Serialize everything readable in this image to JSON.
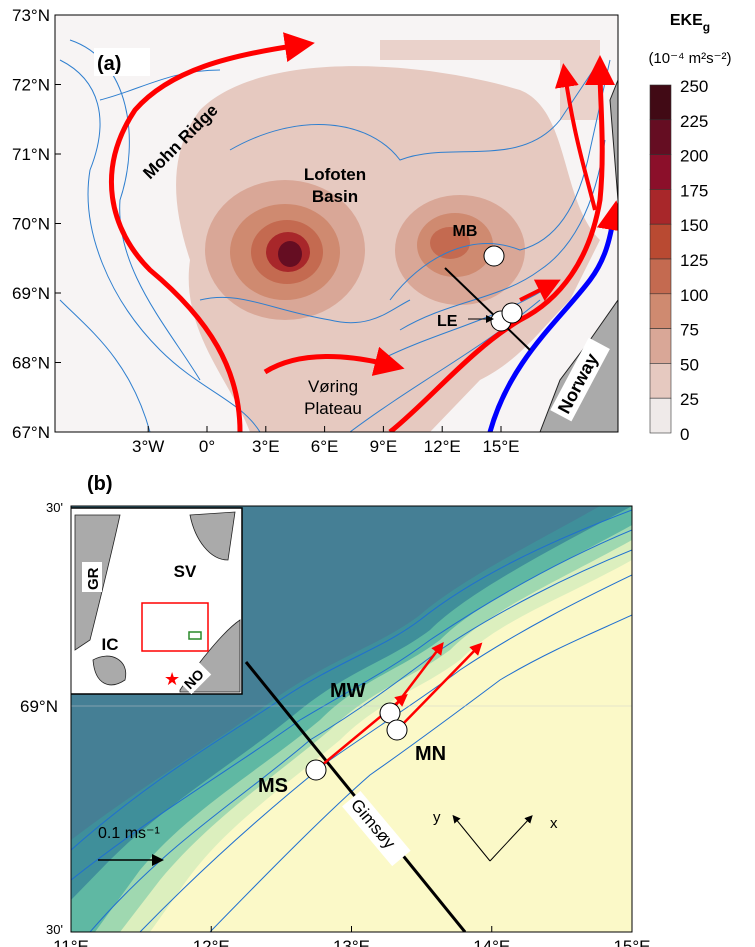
{
  "panel_a": {
    "label": "(a)",
    "lon_ticks": [
      "3",
      "W",
      "0",
      "",
      "3",
      "E",
      "6",
      "E",
      "9",
      "E",
      "12",
      "E",
      "15",
      "E"
    ],
    "lon_values": [
      -3,
      0,
      3,
      6,
      9,
      12,
      15
    ],
    "lon_labels": [
      "3°W",
      "0°",
      "3°E",
      "6°E",
      "9°E",
      "12°E",
      "15°E"
    ],
    "lat_values": [
      73,
      72,
      71,
      70,
      69,
      68,
      67
    ],
    "lat_labels": [
      "73°N",
      "72°N",
      "71°N",
      "70°N",
      "69°N",
      "68°N",
      "67°N"
    ],
    "places": {
      "mohn_ridge": "Mohn Ridge",
      "lofoten_1": "Lofoten",
      "lofoten_2": "Basin",
      "voring_1": "Vøring",
      "voring_2": "Plateau",
      "norway": "Norway",
      "mb": "MB",
      "le": "LE"
    },
    "colorbar": {
      "title": "EKE",
      "title_sub": "g",
      "units": "(10⁻⁴ m²s⁻²)",
      "ticks": [
        "250",
        "225",
        "200",
        "175",
        "150",
        "125",
        "100",
        "75",
        "50",
        "25",
        "0"
      ],
      "colors": [
        "#410a15",
        "#650d22",
        "#8b0f2a",
        "#a8272a",
        "#b94a32",
        "#c46a50",
        "#cf8a70",
        "#d9a797",
        "#e6c9c0",
        "#efeae9"
      ]
    }
  },
  "panel_b": {
    "label": "(b)",
    "lon_values": [
      11,
      12,
      13,
      14,
      15
    ],
    "lon_labels": [
      "11°E",
      "12°E",
      "13°E",
      "14°E",
      "15°E"
    ],
    "lat_labels": {
      "top": "30'",
      "mid": "69°N",
      "bottom": "30'"
    },
    "moorings": {
      "mw": "MW",
      "mn": "MN",
      "ms": "MS"
    },
    "section": "Gimsøy",
    "scale": "0.1 ms⁻¹",
    "axes": {
      "x": "x",
      "y": "y"
    },
    "inset": {
      "gr": "GR",
      "sv": "SV",
      "ic": "IC",
      "no": "NO"
    }
  }
}
